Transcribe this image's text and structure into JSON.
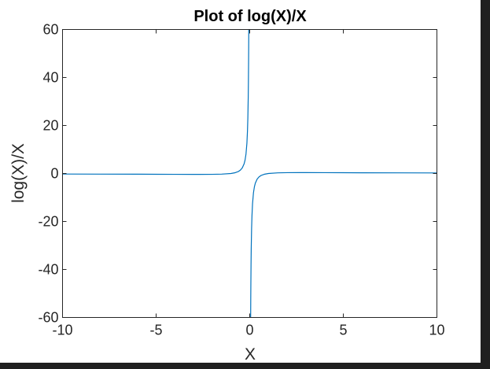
{
  "chart_data": {
    "type": "line",
    "title": "Plot of log(X)/X",
    "xlabel": "X",
    "ylabel": "log(X)/X",
    "xlim": [
      -10,
      10
    ],
    "ylim": [
      -60,
      60
    ],
    "xticks": [
      -10,
      -5,
      0,
      5,
      10
    ],
    "xtick_labels": [
      "-10",
      "-5",
      "0",
      "5",
      "10"
    ],
    "yticks": [
      -60,
      -40,
      -20,
      0,
      20,
      40,
      60
    ],
    "ytick_labels": [
      "-60",
      "-40",
      "-20",
      "0",
      "20",
      "40",
      "60"
    ],
    "grid": false,
    "function": "log(abs(X))/X",
    "series": [
      {
        "x": [
          -10,
          -8,
          -6,
          -5,
          -4,
          -3,
          -2,
          -1.5,
          -1,
          -0.8,
          -0.6,
          -0.5,
          -0.4,
          -0.3,
          -0.25,
          -0.2,
          -0.15,
          -0.12,
          -0.1,
          -0.08,
          -0.07,
          -0.06,
          -0.055,
          -0.05
        ],
        "y": [
          -0.23,
          -0.26,
          -0.3,
          -0.32,
          -0.35,
          -0.37,
          -0.35,
          -0.27,
          0,
          0.28,
          0.85,
          1.39,
          2.29,
          4.01,
          5.55,
          8.05,
          12.65,
          17.67,
          23.03,
          31.57,
          37.99,
          46.89,
          52.71,
          59.91
        ],
        "color": "#0072bd"
      },
      {
        "x": [
          0.05,
          0.055,
          0.06,
          0.07,
          0.08,
          0.1,
          0.12,
          0.15,
          0.2,
          0.25,
          0.3,
          0.4,
          0.5,
          0.6,
          0.8,
          1,
          1.5,
          2,
          3,
          4,
          5,
          6,
          8,
          10
        ],
        "y": [
          -59.91,
          -52.71,
          -46.89,
          -37.99,
          -31.57,
          -23.03,
          -17.67,
          -12.65,
          -8.05,
          -5.55,
          -4.01,
          -2.29,
          -1.39,
          -0.85,
          -0.28,
          0,
          0.27,
          0.35,
          0.37,
          0.35,
          0.32,
          0.3,
          0.26,
          0.23
        ],
        "color": "#0072bd"
      }
    ]
  }
}
